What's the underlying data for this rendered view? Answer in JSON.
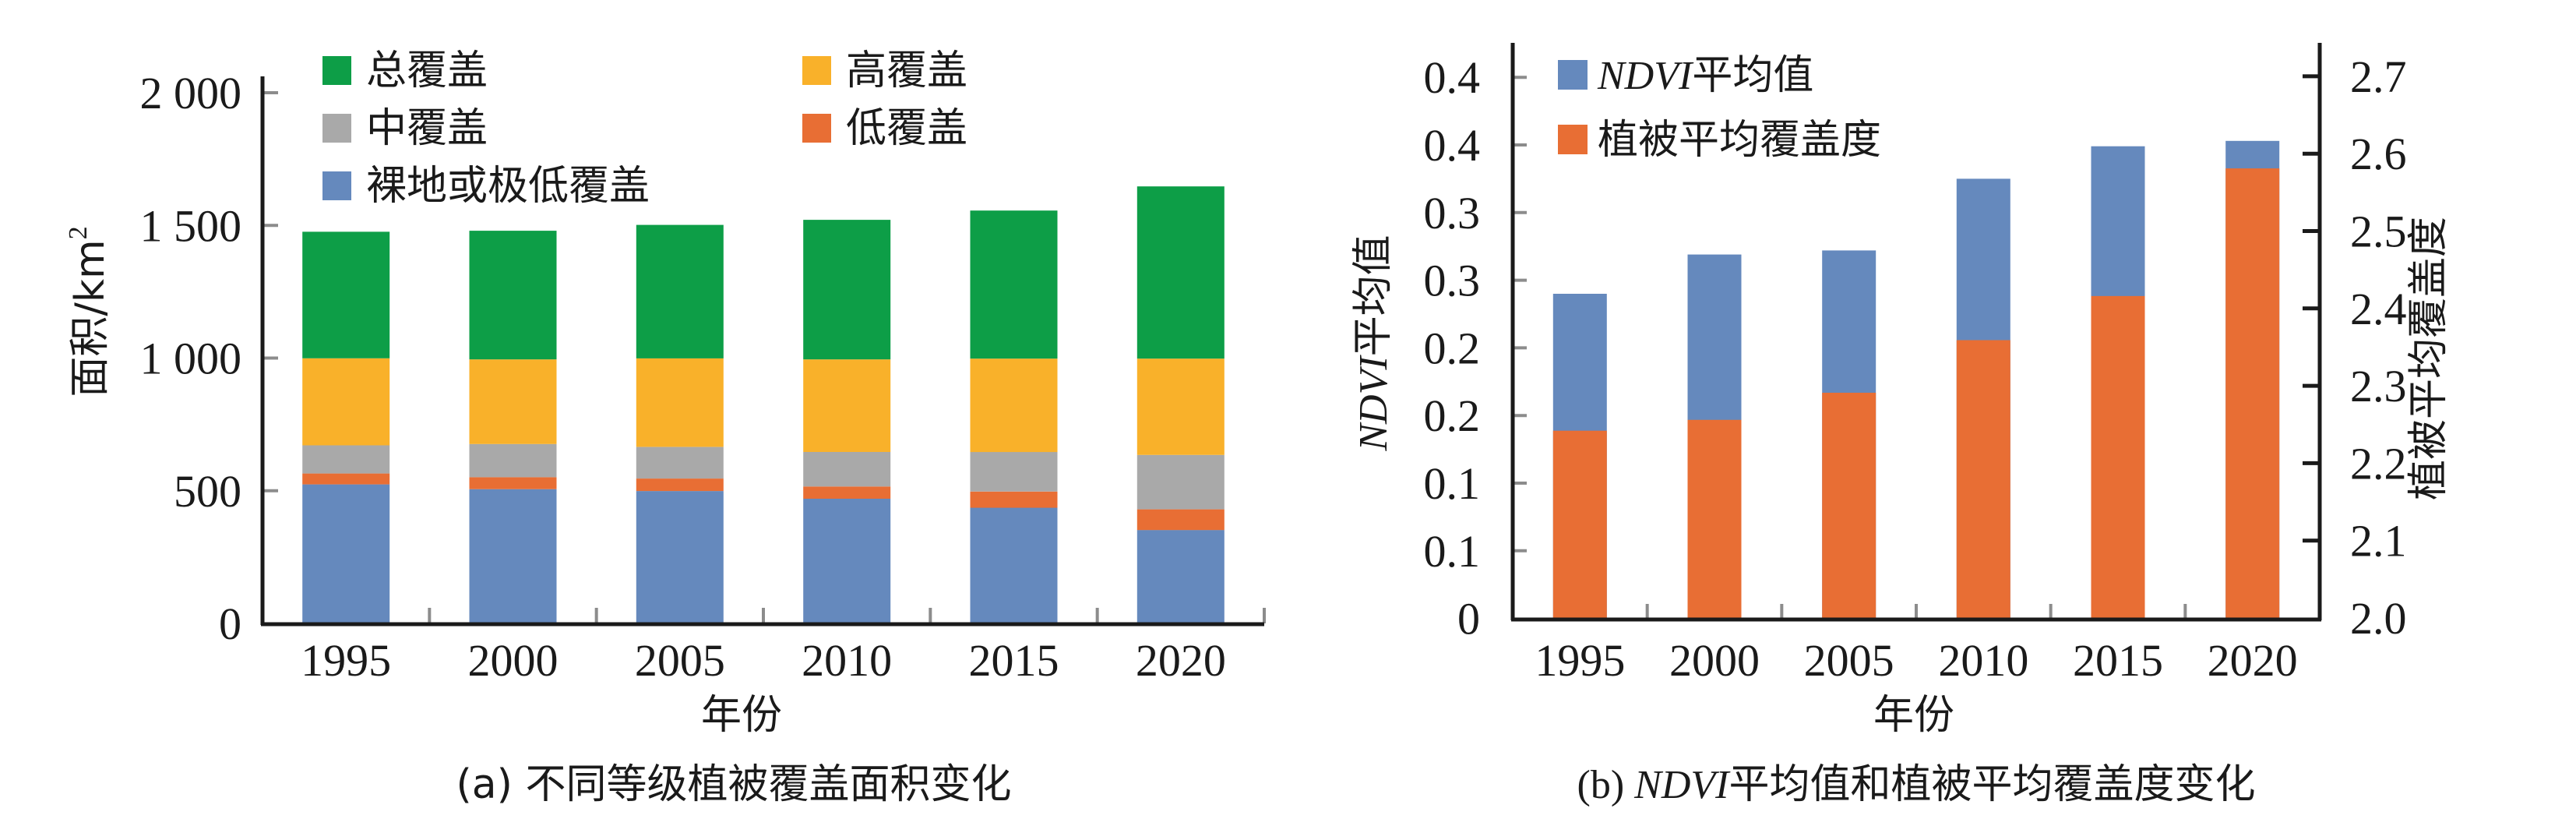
{
  "chart_data": [
    {
      "type": "bar",
      "stacked": true,
      "panel": "a",
      "caption": "(a) 不同等级植被覆盖面积变化",
      "xlabel": "年份",
      "ylabel": "面积/km",
      "ylabel_sup": "2",
      "categories": [
        "1995",
        "2000",
        "2005",
        "2010",
        "2015",
        "2020"
      ],
      "yticks": [
        0,
        500,
        1000,
        1500,
        2000
      ],
      "ytick_labels": [
        "0",
        "500",
        "1 000",
        "1 500",
        "2 000"
      ],
      "ylim": [
        0,
        2150
      ],
      "grid": false,
      "legend_position": "top",
      "series": [
        {
          "name": "裸地或极低覆盖",
          "color": "#6589bd",
          "values": [
            524,
            506,
            499,
            470,
            436,
            352
          ]
        },
        {
          "name": "低覆盖",
          "color": "#e86e34",
          "values": [
            41,
            45,
            47,
            46,
            61,
            78
          ]
        },
        {
          "name": "中覆盖",
          "color": "#a9a9a9",
          "values": [
            106,
            125,
            119,
            130,
            149,
            205
          ]
        },
        {
          "name": "高覆盖",
          "color": "#f9b12a",
          "values": [
            328,
            319,
            334,
            349,
            352,
            363
          ]
        },
        {
          "name": "总覆盖",
          "color": "#0d9e47",
          "values": [
            477,
            485,
            503,
            526,
            558,
            649
          ]
        }
      ],
      "legend_order": [
        "总覆盖",
        "高覆盖",
        "中覆盖",
        "低覆盖",
        "裸地或极低覆盖"
      ]
    },
    {
      "type": "bar",
      "stacked": false,
      "overlapping": true,
      "dual_axis": true,
      "panel": "b",
      "caption_prefix": "(b) ",
      "caption_italic": "NDVI",
      "caption_rest": "平均值和植被平均覆盖度变化",
      "xlabel": "年份",
      "ylabel_italic": "NDVI",
      "ylabel_rest": "平均值",
      "y2label": "植被平均覆盖度",
      "categories": [
        "1995",
        "2000",
        "2005",
        "2010",
        "2015",
        "2020"
      ],
      "yticks": [
        0,
        0.05,
        0.1,
        0.15,
        0.2,
        0.25,
        0.3,
        0.35,
        0.4
      ],
      "ytick_labels": [
        "0",
        "0.1",
        "0.1",
        "0.2",
        "0.2",
        "0.3",
        "0.3",
        "0.4",
        "0.4"
      ],
      "ylim": [
        0,
        0.43
      ],
      "y2ticks": [
        2.0,
        2.1,
        2.2,
        2.3,
        2.4,
        2.5,
        2.6,
        2.7
      ],
      "y2tick_labels": [
        "2.0",
        "2.1",
        "2.2",
        "2.3",
        "2.4",
        "2.5",
        "2.6",
        "2.7"
      ],
      "y2lim": [
        2.0,
        2.74
      ],
      "grid": false,
      "legend_position": "top-left",
      "series": [
        {
          "name_italic": "NDVI",
          "name_rest": "平均值",
          "axis": "left",
          "color": "#6589bd",
          "values": [
            0.24,
            0.269,
            0.272,
            0.325,
            0.349,
            0.353
          ]
        },
        {
          "name": "植被平均覆盖度",
          "axis": "right",
          "color": "#e86e34",
          "values": [
            2.242,
            2.256,
            2.291,
            2.359,
            2.416,
            2.581
          ]
        }
      ]
    }
  ]
}
